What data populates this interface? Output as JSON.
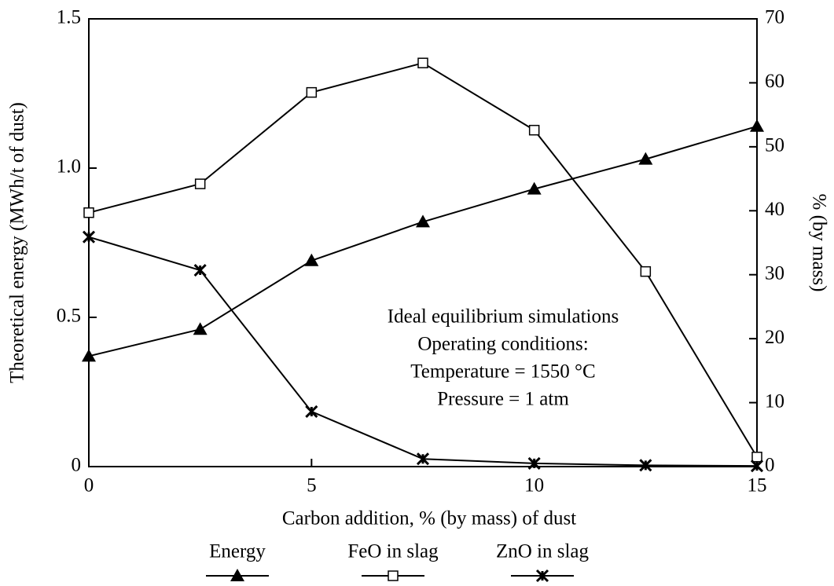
{
  "chart_data": {
    "type": "line",
    "xlabel": "Carbon addition, % (by mass) of dust",
    "ylabel": "Theoretical energy (MWh/t of dust)",
    "y2label": "% (by mass)",
    "x": [
      0,
      2.5,
      5,
      7.5,
      10,
      12.5,
      15
    ],
    "xlim": [
      0,
      15
    ],
    "xticks": [
      0,
      5,
      10,
      15
    ],
    "ylim": [
      0,
      1.5
    ],
    "yticks": [
      0,
      0.5,
      {
        "value": 1.0,
        "label": "1.0"
      },
      {
        "value": 1.5,
        "label": "1.5"
      }
    ],
    "y2lim": [
      0,
      70
    ],
    "y2ticks": [
      0,
      10,
      20,
      30,
      40,
      50,
      60,
      70
    ],
    "series": [
      {
        "name": "Energy",
        "color": "#000000",
        "marker": "triangle",
        "values": [
          0.37,
          0.46,
          0.69,
          0.82,
          0.93,
          1.03,
          1.14
        ]
      },
      {
        "name": "FeO in slag",
        "color": "#000000",
        "marker": "square",
        "axis": "y2",
        "values": [
          39.7,
          44.2,
          58.5,
          63.1,
          52.6,
          30.5,
          1.5
        ]
      },
      {
        "name": "ZnO in slag",
        "color": "#000000",
        "marker": "cross",
        "axis": "y2",
        "values": [
          35.9,
          30.7,
          8.6,
          1.2,
          0.5,
          0.2,
          0.1
        ]
      }
    ],
    "annotation": [
      "Ideal equilibrium simulations",
      "Operating conditions:",
      "Temperature = 1550 °C",
      "Pressure = 1 atm"
    ],
    "legend": "bottom"
  }
}
